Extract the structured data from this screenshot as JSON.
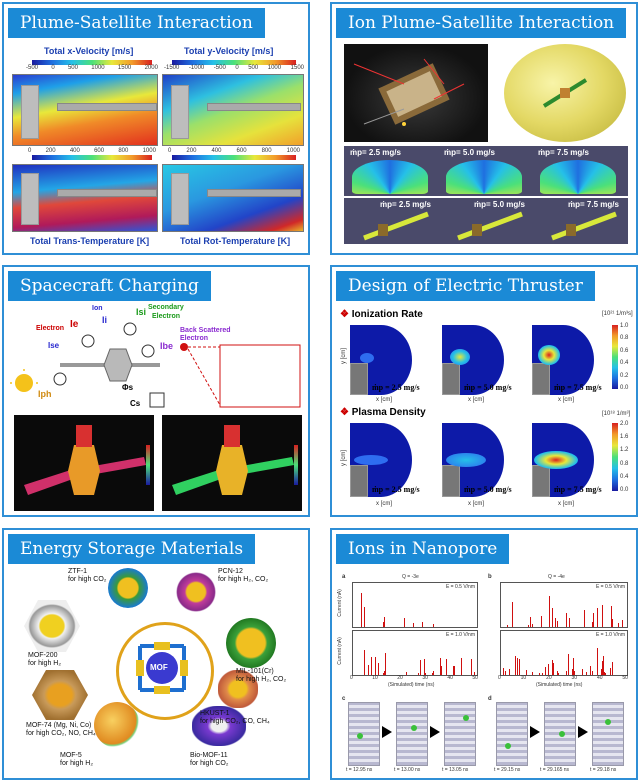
{
  "panels": {
    "p1": {
      "title": "Plume-Satellite Interaction",
      "labels": {
        "xvel": "Total x-Velocity [m/s]",
        "yvel": "Total y-Velocity [m/s]",
        "trans": "Total Trans-Temperature [K]",
        "rot": "Total Rot-Temperature [K]"
      },
      "ticks": {
        "xvel": [
          "-500",
          "0",
          "500",
          "1000",
          "1500",
          "2000"
        ],
        "yvel": [
          "-1500",
          "-1000",
          "-500",
          "0",
          "500",
          "1000",
          "1500"
        ],
        "ttemp": [
          "0",
          "200",
          "400",
          "600",
          "800",
          "1000"
        ],
        "rtemp": [
          "0",
          "200",
          "400",
          "600",
          "800",
          "1000"
        ]
      }
    },
    "p2": {
      "title": "Ion Plume-Satellite Interaction",
      "mdots": [
        "ṁp= 2.5 mg/s",
        "ṁp= 5.0 mg/s",
        "ṁp= 7.5 mg/s"
      ]
    },
    "p3": {
      "title": "Spacecraft Charging",
      "labels": {
        "electron": "Electron",
        "ie": "Ie",
        "ion": "Ion",
        "ii": "Ii",
        "isi": "Isi",
        "secondary": "Secondary",
        "secondary2": "Electron",
        "ise": "Ise",
        "ibe": "Ibe",
        "backscatter": "Back Scattered",
        "backscatter2": "Electron",
        "iph": "Iph",
        "phis": "Φs",
        "cs": "Cs"
      }
    },
    "p4": {
      "title": "Design of Electric Thruster",
      "sections": {
        "ionization": "Ionization Rate",
        "density": "Plasma Density"
      },
      "units": {
        "ionization": "[10²¹ 1/m³s]",
        "density": "[10¹⁸ 1/m³]"
      },
      "mdots": [
        "ṁp = 2.5 mg/s",
        "ṁp = 5.0 mg/s",
        "ṁp = 7.5 mg/s"
      ],
      "xlabel": "x [cm]",
      "ylabel": "y [cm]",
      "cbar_ticks_ion": [
        "1.0",
        "0.8",
        "0.6",
        "0.4",
        "0.2",
        "0.0"
      ],
      "cbar_ticks_den": [
        "2.0",
        "1.6",
        "1.2",
        "0.8",
        "0.4",
        "0.0"
      ]
    },
    "p5": {
      "title": "Energy Storage Materials",
      "center": "MOF",
      "items": {
        "ztf": "ZTF-1\nfor high CO₂",
        "pcn": "PCN-12\nfor high H₂, CO₂",
        "mof200": "MOF-200\nfor high H₂",
        "mil": "MIL-101(Cr)\nfor high H₂, CO₂",
        "hkust": "HKUST-1\nfor high CO₂, CO, CH₄",
        "mof74": "MOF-74 (Mg, Ni, Co)\nfor high CO₂, NO, CH₄",
        "mof5": "MOF-5\nfor high H₂",
        "bio": "Bio-MOF-11\nfor high CO₂"
      }
    },
    "p6": {
      "title": "Ions in Nanopore",
      "a": {
        "tag": "a",
        "title": "Q = -3e",
        "e1": "E = 0.5 V/nm",
        "e2": "E = 1.0 V/nm"
      },
      "b": {
        "tag": "b",
        "title": "Q = -4e",
        "e1": "E = 0.5 V/nm",
        "e2": "E = 1.0 V/nm"
      },
      "ylabel": "Current (nA)",
      "xlabel": "(Simulated) time (ns)",
      "xticks": [
        "0",
        "10",
        "20",
        "30",
        "40",
        "50"
      ],
      "c": {
        "tag": "c",
        "times": [
          "t = 12.95 ns",
          "t = 13.00 ns",
          "t = 13.05 ns"
        ]
      },
      "d": {
        "tag": "d",
        "times": [
          "t = 29.15 ns",
          "t = 29.165 ns",
          "t = 29.18 ns"
        ]
      }
    }
  },
  "colors": {
    "border": "#2f8fd6",
    "title_bg": "#1b8ad6",
    "title_text": "#ffffff",
    "label_blue": "#1b3fb0",
    "spike": "#d01010"
  }
}
